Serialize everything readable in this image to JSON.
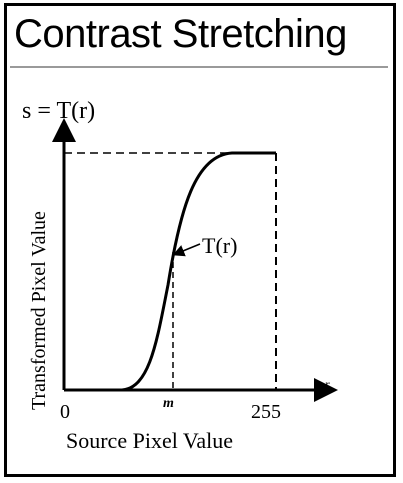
{
  "header": {
    "title": "Contrast Stretching"
  },
  "diagram": {
    "function_label": "s = T(r)",
    "y_axis_label": "Transformed Pixel Value",
    "x_axis_label": "Source Pixel Value",
    "x_end_symbol": "r",
    "curve_label": "T(r)",
    "x_tick_origin": "0",
    "x_tick_midpoint": "m",
    "x_tick_max": "255"
  }
}
